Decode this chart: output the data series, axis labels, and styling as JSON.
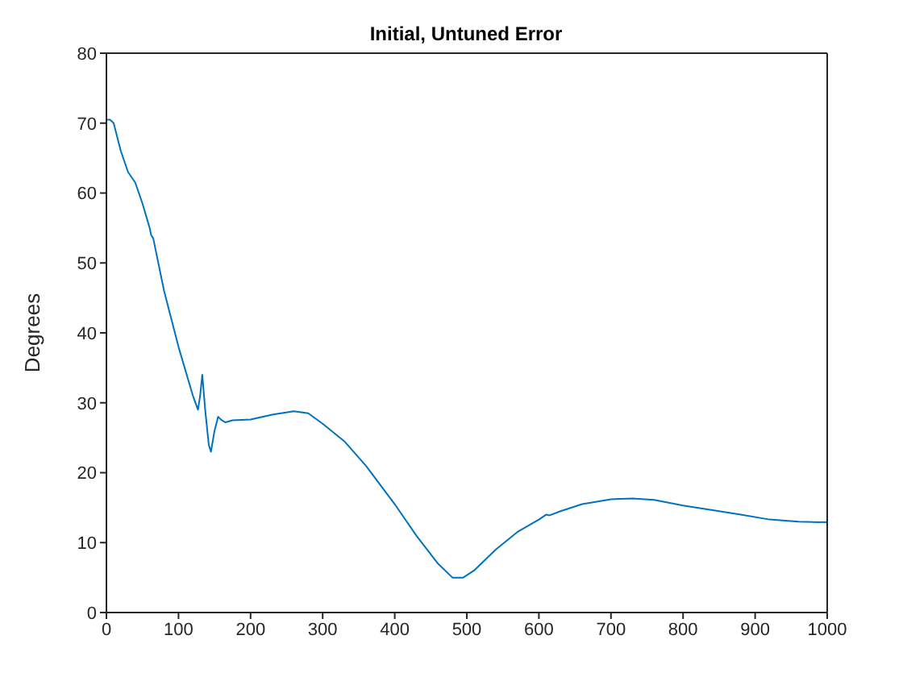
{
  "chart_data": {
    "type": "line",
    "title": "Initial, Untuned Error",
    "ylabel": "Degrees",
    "x": [
      0,
      5,
      10,
      20,
      30,
      40,
      50,
      60,
      62,
      65,
      80,
      100,
      120,
      127,
      130,
      133,
      137,
      142,
      145,
      150,
      155,
      160,
      165,
      175,
      200,
      230,
      260,
      280,
      300,
      330,
      360,
      400,
      430,
      460,
      480,
      495,
      510,
      540,
      570,
      600,
      610,
      615,
      630,
      660,
      700,
      730,
      760,
      800,
      850,
      880,
      920,
      960,
      1000
    ],
    "series": [
      {
        "color": "#0072bd",
        "values": [
          70.5,
          70.5,
          70,
          66,
          63,
          61.5,
          58.5,
          55,
          54,
          53.5,
          46,
          38,
          31,
          29,
          31,
          34,
          29,
          24,
          23,
          26,
          28,
          27.5,
          27.2,
          27.5,
          27.6,
          28.3,
          28.8,
          28.5,
          27,
          24.5,
          21,
          15.5,
          11,
          7,
          5,
          5,
          6,
          9,
          11.5,
          13.3,
          14,
          13.9,
          14.5,
          15.5,
          16.2,
          16.3,
          16.1,
          15.3,
          14.5,
          14,
          13.3,
          13,
          12.9
        ]
      }
    ],
    "xlim": [
      0,
      1000
    ],
    "xticks": [
      0,
      100,
      200,
      300,
      400,
      500,
      600,
      700,
      800,
      900,
      1000
    ],
    "ylim": [
      0,
      80
    ],
    "yticks": [
      0,
      10,
      20,
      30,
      40,
      50,
      60,
      70,
      80
    ],
    "grid": false,
    "legend": false,
    "marker": "none",
    "line_style": "solid"
  }
}
